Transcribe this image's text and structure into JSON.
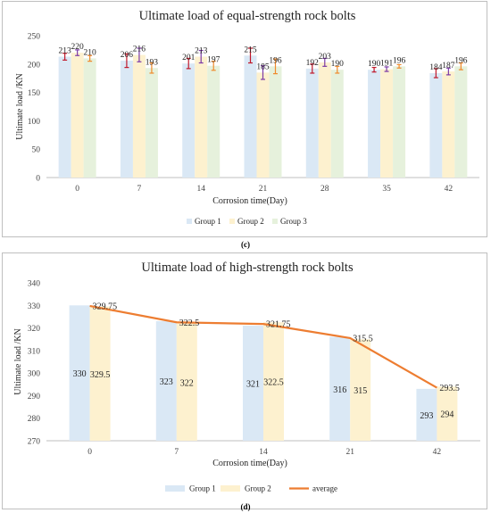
{
  "chart_data": [
    {
      "type": "bar",
      "title": "Ultimate load of equal-strength rock bolts",
      "xlabel": "Corrosion time(Day)",
      "ylabel": "Ultimate load /KN",
      "categories": [
        "0",
        "7",
        "14",
        "21",
        "28",
        "35",
        "42"
      ],
      "ylim": [
        0,
        250
      ],
      "yticks": [
        "0",
        "50",
        "100",
        "150",
        "200",
        "250"
      ],
      "grid": false,
      "legend_position": "bottom",
      "series": [
        {
          "name": "Group 1",
          "values": [
            213,
            206,
            201,
            215,
            192,
            190,
            184
          ],
          "labels": [
            "213",
            "206",
            "201",
            "215",
            "192",
            "190",
            "184"
          ],
          "error": [
            6,
            12,
            9,
            13,
            8,
            4,
            8
          ],
          "bar_color": "#dae8f5",
          "error_color": "#c0182a"
        },
        {
          "name": "Group 2",
          "values": [
            220,
            216,
            213,
            185,
            203,
            191,
            187
          ],
          "labels": [
            "220",
            "216",
            "213",
            "185",
            "203",
            "191",
            "187"
          ],
          "error": [
            5,
            12,
            11,
            12,
            7,
            4,
            6
          ],
          "bar_color": "#fdf1cf",
          "error_color": "#7c3aa6"
        },
        {
          "name": "Group 3",
          "values": [
            210,
            193,
            197,
            196,
            190,
            196,
            196
          ],
          "labels": [
            "210",
            "193",
            "197",
            "196",
            "190",
            "196",
            "196"
          ],
          "error": [
            5,
            9,
            8,
            13,
            6,
            3,
            6
          ],
          "bar_color": "#e6f1dc",
          "error_color": "#f08a2b"
        }
      ]
    },
    {
      "type": "bar",
      "title": "Ultimate load of high-strength rock bolts",
      "xlabel": "Corrosion time(Day)",
      "ylabel": "Ultimate load /KN",
      "categories": [
        "0",
        "7",
        "14",
        "21",
        "42"
      ],
      "ylim": [
        270,
        340
      ],
      "yticks": [
        "270",
        "280",
        "290",
        "300",
        "310",
        "320",
        "330",
        "340"
      ],
      "grid": false,
      "legend_position": "bottom",
      "series": [
        {
          "name": "Group 1",
          "values": [
            330,
            323,
            321,
            316,
            293
          ],
          "labels": [
            "330",
            "323",
            "321",
            "316",
            "293"
          ],
          "bar_color": "#dae8f5"
        },
        {
          "name": "Group 2",
          "values": [
            329.5,
            322,
            322.5,
            315,
            294
          ],
          "labels": [
            "329.5",
            "322",
            "322.5",
            "315",
            "294"
          ],
          "bar_color": "#fdf1cf"
        }
      ],
      "line": {
        "name": "average",
        "values": [
          329.75,
          322.5,
          321.75,
          315.5,
          293.5
        ],
        "labels": [
          "329.75",
          "322.5",
          "321.75",
          "315.5",
          "293.5"
        ],
        "color": "#ed7d31"
      }
    }
  ],
  "captions": {
    "c": "(c)",
    "d": "(d)"
  }
}
